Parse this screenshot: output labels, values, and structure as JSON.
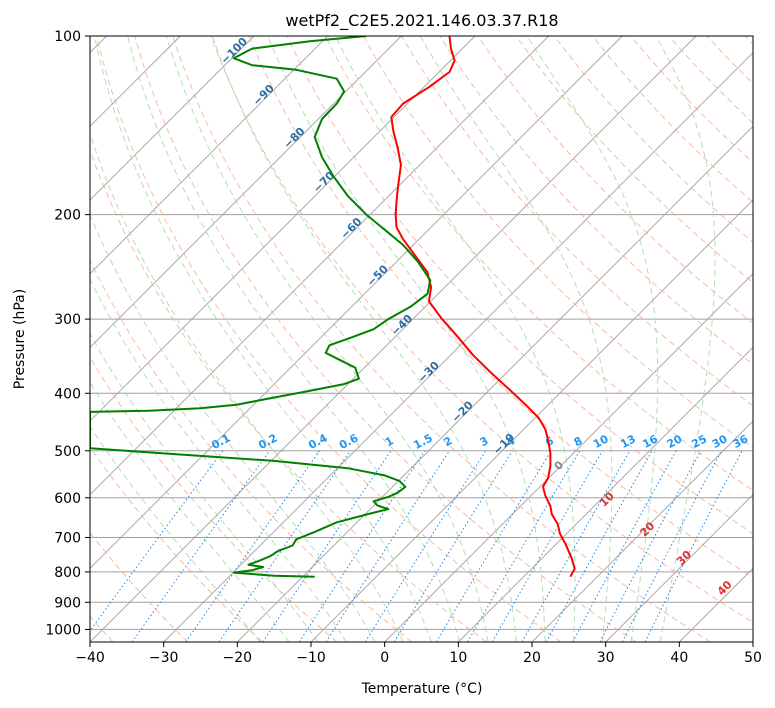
{
  "chart_data": {
    "type": "line",
    "title": "wetPf2_C2E5.2021.146.03.37.R18",
    "xlabel": "Temperature (°C)",
    "ylabel": "Pressure (hPa)",
    "xlim": [
      -40,
      50
    ],
    "ylim": [
      1050,
      100
    ],
    "y_scale": "log",
    "grid": true,
    "x_ticks": [
      -40,
      -30,
      -20,
      -10,
      0,
      10,
      20,
      30,
      40,
      50
    ],
    "x_tick_labels": [
      "−40",
      "−30",
      "−20",
      "−10",
      "0",
      "10",
      "20",
      "30",
      "40",
      "50"
    ],
    "y_ticks": [
      100,
      200,
      300,
      400,
      500,
      600,
      700,
      800,
      900,
      1000
    ],
    "y_tick_labels": [
      "100",
      "200",
      "300",
      "400",
      "500",
      "600",
      "700",
      "800",
      "900",
      "1000"
    ],
    "colors": {
      "temperature": "#ff0000",
      "dewpoint": "#008000",
      "isotherm": "#a0a0a0",
      "dry_adiabat": "#f4a582",
      "moist_adiabat": "#a6d7a8",
      "mixing_ratio": "#1e88e5",
      "mixing_label": "#2196f3",
      "freezing_label": "#2e6da4",
      "theta_label": "#e03030",
      "zero_label": "#888888",
      "dry_adiabat_cold": "#d2b48c"
    },
    "series": [
      {
        "key": "temperature",
        "points": [
          [
            25.2,
            815
          ],
          [
            25.8,
            790
          ],
          [
            25.4,
            760
          ],
          [
            24.6,
            720
          ],
          [
            23.8,
            690
          ],
          [
            23.5,
            665
          ],
          [
            22.7,
            640
          ],
          [
            22.5,
            620
          ],
          [
            21.8,
            595
          ],
          [
            21.5,
            575
          ],
          [
            22.2,
            555
          ],
          [
            22.5,
            530
          ],
          [
            22.5,
            505
          ],
          [
            22.2,
            480
          ],
          [
            21.8,
            460
          ],
          [
            20.9,
            440
          ],
          [
            19.3,
            420
          ],
          [
            17.0,
            395
          ],
          [
            14.5,
            370
          ],
          [
            12.0,
            345
          ],
          [
            9.8,
            320
          ],
          [
            7.8,
            300
          ],
          [
            6.0,
            280
          ],
          [
            6.3,
            265
          ],
          [
            5.8,
            250
          ],
          [
            4.2,
            235
          ],
          [
            2.5,
            220
          ],
          [
            1.6,
            210
          ],
          [
            1.5,
            200
          ],
          [
            1.6,
            190
          ],
          [
            1.8,
            180
          ],
          [
            2.2,
            165
          ],
          [
            1.8,
            155
          ],
          [
            1.2,
            145
          ],
          [
            0.9,
            137
          ],
          [
            2.5,
            130
          ],
          [
            6.0,
            122
          ],
          [
            8.8,
            115
          ],
          [
            9.5,
            110
          ],
          [
            9.0,
            105
          ],
          [
            8.8,
            100
          ]
        ]
      },
      {
        "key": "dewpoint",
        "points": [
          [
            -9.5,
            815
          ],
          [
            -15.0,
            812
          ],
          [
            -20.5,
            802
          ],
          [
            -18.0,
            795
          ],
          [
            -16.5,
            785
          ],
          [
            -18.5,
            778
          ],
          [
            -17.0,
            766
          ],
          [
            -15.5,
            752
          ],
          [
            -14.5,
            738
          ],
          [
            -12.5,
            722
          ],
          [
            -12.0,
            705
          ],
          [
            -9.5,
            685
          ],
          [
            -6.5,
            660
          ],
          [
            -2.0,
            638
          ],
          [
            0.5,
            627
          ],
          [
            -1.0,
            618
          ],
          [
            -1.5,
            608
          ],
          [
            0.5,
            598
          ],
          [
            1.8,
            588
          ],
          [
            2.8,
            575
          ],
          [
            2.0,
            562
          ],
          [
            0.0,
            550
          ],
          [
            -5.0,
            535
          ],
          [
            -15.0,
            520
          ],
          [
            -30.0,
            505
          ],
          [
            -40.0,
            495
          ],
          [
            -40.0,
            430
          ],
          [
            -32.0,
            428
          ],
          [
            -25.0,
            424
          ],
          [
            -20.0,
            418
          ],
          [
            -16.5,
            410
          ],
          [
            -11.0,
            398
          ],
          [
            -5.5,
            386
          ],
          [
            -3.5,
            378
          ],
          [
            -4.0,
            362
          ],
          [
            -6.0,
            352
          ],
          [
            -8.0,
            342
          ],
          [
            -7.5,
            332
          ],
          [
            -4.5,
            322
          ],
          [
            -1.5,
            312
          ],
          [
            0.5,
            300
          ],
          [
            3.5,
            286
          ],
          [
            5.8,
            272
          ],
          [
            6.2,
            258
          ],
          [
            4.5,
            240
          ],
          [
            2.5,
            225
          ],
          [
            0.0,
            212
          ],
          [
            -2.5,
            200
          ],
          [
            -5.0,
            186
          ],
          [
            -7.0,
            172
          ],
          [
            -8.5,
            160
          ],
          [
            -9.5,
            148
          ],
          [
            -8.5,
            138
          ],
          [
            -6.5,
            130
          ],
          [
            -5.5,
            124
          ],
          [
            -6.5,
            118
          ],
          [
            -12.0,
            114
          ],
          [
            -18.0,
            112
          ],
          [
            -20.5,
            109
          ],
          [
            -18.0,
            105
          ],
          [
            -10.0,
            102
          ],
          [
            -2.5,
            100
          ]
        ]
      }
    ],
    "annotations": {
      "freezing_level_labels": [
        "−100",
        "−90",
        "−80",
        "−70",
        "−60",
        "−50",
        "−40",
        "−30",
        "−20",
        "−10"
      ],
      "mixing_ratio_labels": [
        "0.1",
        "0.2",
        "0.4",
        "0.6",
        "1",
        "1.5",
        "2",
        "3",
        "4",
        "6",
        "8",
        "10",
        "13",
        "16",
        "20",
        "25",
        "30",
        "36"
      ],
      "theta_labels": [
        "0",
        "10",
        "20",
        "30",
        "40"
      ]
    }
  }
}
